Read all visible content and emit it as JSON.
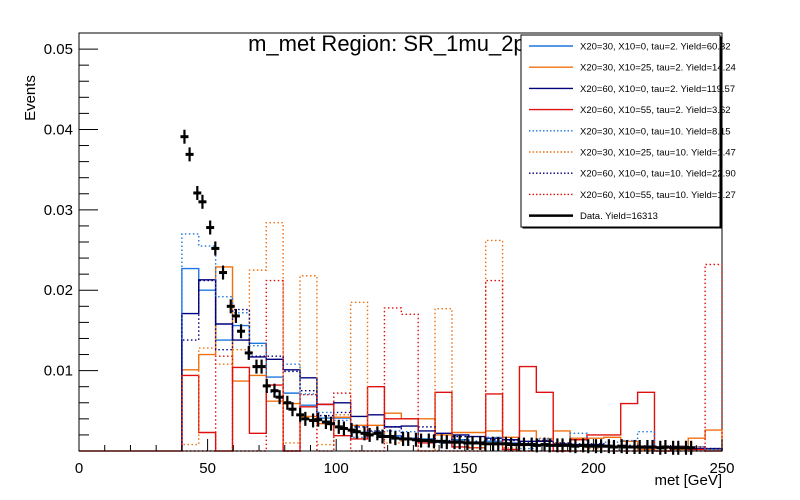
{
  "chart_data": {
    "type": "histogram",
    "title": "m_met Region: SR_1mu_2ph",
    "xlabel": "met [GeV]",
    "ylabel": "Events",
    "xlim": [
      0,
      250
    ],
    "ylim": [
      0,
      0.052
    ],
    "x_ticks": [
      0,
      50,
      100,
      150,
      200,
      250
    ],
    "x_tick_labels": [
      "0",
      "50",
      "100",
      "150",
      "200",
      "250"
    ],
    "y_ticks": [
      0.01,
      0.02,
      0.03,
      0.04,
      0.05
    ],
    "y_tick_labels": [
      "0.01",
      "0.02",
      "0.03",
      "0.04",
      "0.05"
    ],
    "grid": false,
    "legend_position": "top-right",
    "bin_range": [
      40,
      250
    ],
    "n_bins": 32,
    "series": [
      {
        "name": "X20=30, X10=0, tau=2. Yield=60.32",
        "color": "#1f77e0",
        "style": "solid",
        "values": [
          0.0227,
          0.02,
          0.0138,
          0.0156,
          0.0134,
          0.0092,
          0.0072,
          0.0057,
          0.0041,
          0.0041,
          0.0023,
          0.0021,
          0.0019,
          0.0016,
          0.0015,
          0.0012,
          0.0014,
          0.001,
          0.0012,
          0.001,
          0.0009,
          0.0007,
          0.0007,
          0.0006,
          0.0006,
          0.0005,
          0.0004,
          0.0003,
          0.0004,
          0.0003,
          0.0002,
          0.0002
        ]
      },
      {
        "name": "X20=30, X10=25, tau=2. Yield=14.24",
        "color": "#f07010",
        "style": "solid",
        "values": [
          0.0101,
          0.012,
          0.0229,
          0.0087,
          0.0094,
          0.0062,
          0.0059,
          0.0043,
          0.0034,
          0.0042,
          0.0032,
          0.0032,
          0.0047,
          0.004,
          0.004,
          0.002,
          0.0023,
          0.0023,
          0.0025,
          0.0017,
          0.0025,
          0.0013,
          0.0025,
          0.0016,
          0.0016,
          0.0017,
          0.0012,
          0.0002,
          0.0004,
          0.0002,
          0.0016,
          0.0026
        ]
      },
      {
        "name": "X20=60, X10=0, tau=2. Yield=119.57",
        "color": "#00007f",
        "style": "solid",
        "values": [
          0.0171,
          0.0213,
          0.0158,
          0.0138,
          0.0117,
          0.0114,
          0.0101,
          0.0091,
          0.0058,
          0.006,
          0.0043,
          0.0045,
          0.003,
          0.0031,
          0.0025,
          0.0022,
          0.002,
          0.0018,
          0.0016,
          0.0014,
          0.0012,
          0.0012,
          0.0009,
          0.0008,
          0.0008,
          0.0006,
          0.0006,
          0.0006,
          0.0005,
          0.0004,
          0.0003,
          0.0003
        ]
      },
      {
        "name": "X20=60, X10=55, tau=2. Yield=3.62",
        "color": "#e01010",
        "style": "solid",
        "values": [
          0.0094,
          0.0023,
          0.0,
          0.0104,
          0.0022,
          0.0082,
          0.0,
          0.0055,
          0.0058,
          0.0019,
          0.0015,
          0.008,
          0.004,
          0.004,
          0.001,
          0.0073,
          0.0005,
          0.0004,
          0.0071,
          0.0002,
          0.0105,
          0.0073,
          0.0,
          0.0014,
          0.002,
          0.002,
          0.0059,
          0.0073,
          0.0,
          0.0006,
          0.0002,
          0.0
        ]
      },
      {
        "name": "X20=30, X10=0, tau=10. Yield=8.15",
        "color": "#1f77e0",
        "style": "dotted",
        "values": [
          0.027,
          0.0255,
          0.0192,
          0.0172,
          0.0131,
          0.0073,
          0.0108,
          0.0071,
          0.0048,
          0.0038,
          0.0017,
          0.0024,
          0.0025,
          0.0024,
          0.0015,
          0.001,
          0.0018,
          0.0012,
          0.0017,
          0.0009,
          0.0003,
          0.0015,
          0.0008,
          0.0022,
          0.0006,
          0.0011,
          0.0013,
          0.0024,
          0.0003,
          0.0006,
          0.0005,
          0.0002
        ]
      },
      {
        "name": "X20=30, X10=25, tau=10. Yield=1.47",
        "color": "#f07010",
        "style": "dotted",
        "values": [
          0.0008,
          0.0128,
          0.0108,
          0.0126,
          0.0225,
          0.0284,
          0.001,
          0.0218,
          0.0008,
          0.0045,
          0.0185,
          0.0022,
          0.001,
          0.0014,
          0.0,
          0.0177,
          0.001,
          0.0004,
          0.0262,
          0.0004,
          0.0,
          0.0016,
          0.001,
          0.0006,
          0.0003,
          0.0006,
          0.0004,
          0.0002,
          0.0003,
          0.0003,
          0.0005,
          0.0002
        ]
      },
      {
        "name": "X20=60, X10=0, tau=10. Yield=22.90",
        "color": "#00007f",
        "style": "dotted",
        "values": [
          0.0138,
          0.0212,
          0.0126,
          0.0176,
          0.0118,
          0.0118,
          0.0099,
          0.0075,
          0.0044,
          0.0048,
          0.003,
          0.0025,
          0.003,
          0.0015,
          0.003,
          0.0013,
          0.0018,
          0.0012,
          0.0014,
          0.0013,
          0.0011,
          0.0013,
          0.001,
          0.0009,
          0.0009,
          0.0007,
          0.0007,
          0.0005,
          0.0005,
          0.0005,
          0.0005,
          0.0003
        ]
      },
      {
        "name": "X20=60, X10=55, tau=10. Yield=1.27",
        "color": "#e01010",
        "style": "dotted",
        "values": [
          0.0,
          0.0,
          0.0118,
          0.0,
          0.0,
          0.0212,
          0.0,
          0.007,
          0.0,
          0.0072,
          0.0,
          0.0,
          0.0178,
          0.017,
          0.0,
          0.0,
          0.0,
          0.0,
          0.0212,
          0.0,
          0.0,
          0.0,
          0.0,
          0.0,
          0.0,
          0.0,
          0.0,
          0.0,
          0.0,
          0.0,
          0.0,
          0.0232
        ]
      }
    ],
    "data_points": {
      "name": "Data. Yield=16313",
      "color": "#000000",
      "x": [
        41,
        43,
        46,
        48,
        51,
        53,
        56,
        59,
        61,
        63,
        66,
        69,
        71,
        73,
        76,
        78,
        81,
        83,
        86,
        88,
        91,
        93,
        96,
        98,
        101,
        103,
        106,
        108,
        111,
        113,
        116,
        118,
        121,
        123,
        126,
        128,
        131,
        133,
        136,
        138,
        141,
        143,
        146,
        148,
        151,
        153,
        156,
        158,
        161,
        163,
        166,
        168,
        171,
        173,
        176,
        178,
        181,
        183,
        186,
        188,
        191,
        193,
        196,
        198,
        201,
        203,
        206,
        208,
        211,
        213,
        216,
        218,
        221,
        223,
        226,
        228,
        231,
        233,
        236,
        238
      ],
      "y": [
        0.0391,
        0.0369,
        0.0321,
        0.031,
        0.0278,
        0.0252,
        0.0222,
        0.018,
        0.0168,
        0.0149,
        0.0122,
        0.0105,
        0.0105,
        0.0081,
        0.0075,
        0.0067,
        0.006,
        0.0052,
        0.0045,
        0.004,
        0.0038,
        0.0039,
        0.0036,
        0.0034,
        0.003,
        0.0028,
        0.0026,
        0.0024,
        0.0022,
        0.002,
        0.0022,
        0.0018,
        0.0018,
        0.0016,
        0.0015,
        0.0015,
        0.0014,
        0.0013,
        0.0013,
        0.0012,
        0.0012,
        0.0011,
        0.0011,
        0.0011,
        0.001,
        0.001,
        0.001,
        0.0009,
        0.0009,
        0.0009,
        0.0009,
        0.0008,
        0.0008,
        0.0008,
        0.0008,
        0.0007,
        0.0008,
        0.0007,
        0.0007,
        0.0007,
        0.0007,
        0.0006,
        0.0007,
        0.0006,
        0.0006,
        0.0006,
        0.0006,
        0.0005,
        0.0006,
        0.0005,
        0.0005,
        0.0005,
        0.0005,
        0.0005,
        0.0004,
        0.0005,
        0.0004,
        0.0004,
        0.0004,
        0.0004
      ]
    }
  }
}
